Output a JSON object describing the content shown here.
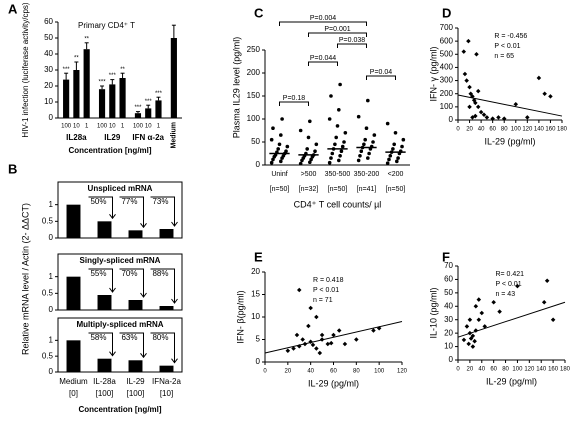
{
  "chart_data": [
    {
      "type": "bar",
      "panel": "A",
      "title": "Primary CD4⁺ T",
      "ylabel": "HIV-1 infection (luciferase activity/cps)",
      "xlabel": "Concentration [ng/ml]",
      "categories": [
        "100",
        "10",
        "1",
        "100",
        "10",
        "1",
        "100",
        "10",
        "1",
        "Medium"
      ],
      "group": [
        "IL28a",
        "IL28a",
        "IL28a",
        "IL29",
        "IL29",
        "IL29",
        "IFN α-2a",
        "IFN α-2a",
        "IFN α-2a",
        null
      ],
      "values": [
        24,
        30,
        43,
        18,
        21,
        25,
        3,
        6,
        11,
        50
      ],
      "errors": [
        4,
        5,
        4,
        2,
        3,
        3,
        1,
        2,
        2,
        8
      ],
      "significance": [
        "***",
        "**",
        "**",
        "***",
        "***",
        "**",
        "***",
        "***",
        "***",
        null
      ],
      "color": "#000000",
      "ylim": [
        0,
        60
      ],
      "yticks": [
        0,
        10,
        20,
        30,
        40,
        50,
        60
      ]
    },
    {
      "type": "bar-panels",
      "panel": "B",
      "ylabel": "Relative mRNA level / Actin (2- ΔΔCT)",
      "xlabel": "Concentration [ng/ml]",
      "categories": [
        "Medium",
        "IL-28a",
        "IL-29",
        "IFNa-2a"
      ],
      "doses": [
        "[0]",
        "[100]",
        "[100]",
        "[10]"
      ],
      "color": "#000000",
      "ylim": [
        0,
        1.2
      ],
      "yticks": [
        0,
        0.5,
        1
      ],
      "panels": [
        {
          "title": "Unspliced mRNA",
          "values": [
            1,
            0.5,
            0.23,
            0.27
          ],
          "reductions": [
            "50%",
            "77%",
            "73%"
          ]
        },
        {
          "title": "Singly-spliced mRNA",
          "values": [
            1,
            0.45,
            0.3,
            0.12
          ],
          "reductions": [
            "55%",
            "70%",
            "88%"
          ]
        },
        {
          "title": "Multiply-spliced mRNA",
          "values": [
            1,
            0.42,
            0.37,
            0.2
          ],
          "reductions": [
            "58%",
            "63%",
            "80%"
          ]
        }
      ]
    },
    {
      "type": "strip",
      "panel": "C",
      "ylabel": "Plasma IL29 level (pg/ml)",
      "xlabel": "CD4⁺ T cell counts/ µl",
      "categories": [
        "Uninf",
        ">500",
        "350-500",
        "350-200",
        "<200"
      ],
      "n_labels": [
        "[n=50]",
        "[n=32]",
        "[n=50]",
        "[n=41]",
        "[n=50]"
      ],
      "values": [
        [
          5,
          8,
          12,
          15,
          18,
          20,
          22,
          25,
          28,
          30,
          35,
          40,
          45,
          55,
          65,
          80,
          100
        ],
        [
          3,
          6,
          10,
          12,
          15,
          18,
          20,
          22,
          25,
          30,
          35,
          45,
          60,
          75,
          95
        ],
        [
          5,
          10,
          15,
          20,
          25,
          30,
          35,
          40,
          45,
          50,
          60,
          70,
          85,
          100,
          120,
          150,
          175
        ],
        [
          10,
          15,
          20,
          25,
          30,
          35,
          38,
          40,
          45,
          50,
          55,
          65,
          80,
          105,
          140
        ],
        [
          4,
          8,
          12,
          15,
          20,
          25,
          28,
          30,
          35,
          40,
          45,
          55,
          70,
          90
        ]
      ],
      "medians": [
        25,
        22,
        35,
        38,
        28
      ],
      "comparisons": [
        {
          "label": "P=0.004",
          "from": "Uninf",
          "to": "350-200"
        },
        {
          "label": "P=0.001",
          "from": ">500",
          "to": "350-200"
        },
        {
          "label": "P=0.038",
          "from": "350-500",
          "to": "350-200"
        },
        {
          "label": "P=0.044",
          "from": ">500",
          "to": "350-500"
        },
        {
          "label": "P=0.04",
          "from": "350-200",
          "to": "<200"
        },
        {
          "label": "P=0.18",
          "from": "Uninf",
          "to": ">500"
        }
      ],
      "color": "#000000",
      "ylim": [
        0,
        250
      ],
      "yticks": [
        0,
        50,
        100,
        150,
        200,
        250
      ]
    },
    {
      "type": "scatter",
      "panel": "D",
      "ylabel": "IFN- γ (pg/ml)",
      "xlabel": "IL-29 (pg/ml)",
      "stats": [
        "R = -0.456",
        "P < 0.01",
        "n = 65"
      ],
      "x": [
        10,
        15,
        18,
        20,
        22,
        25,
        28,
        30,
        32,
        35,
        20,
        40,
        45,
        50,
        60,
        70,
        80,
        25,
        30,
        100,
        120,
        140,
        150,
        160,
        12,
        35
      ],
      "y": [
        520,
        300,
        600,
        250,
        200,
        180,
        150,
        130,
        500,
        100,
        100,
        60,
        40,
        20,
        10,
        20,
        10,
        20,
        30,
        120,
        20,
        320,
        200,
        180,
        350,
        220
      ],
      "fit": {
        "x": [
          0,
          180
        ],
        "y": [
          190,
          30
        ]
      },
      "color": "#000000",
      "xlim": [
        0,
        180
      ],
      "xticks": [
        0,
        20,
        40,
        60,
        80,
        100,
        120,
        140,
        160,
        180
      ],
      "ylim": [
        0,
        700
      ],
      "yticks": [
        0,
        100,
        200,
        300,
        400,
        500,
        600,
        700
      ]
    },
    {
      "type": "scatter",
      "panel": "E",
      "ylabel": "IFN- β(pg/ml)",
      "xlabel": "IL-29 (pg/ml)",
      "stats": [
        "R = 0.418",
        "P < 0.01",
        "n = 71"
      ],
      "x": [
        30,
        40,
        45,
        100,
        95,
        60,
        50,
        35,
        30,
        25,
        40,
        55,
        70,
        80,
        20,
        45,
        50,
        38,
        65,
        28,
        33,
        42,
        58,
        48
      ],
      "y": [
        16,
        12,
        10,
        7.5,
        7,
        6,
        5,
        4,
        3.5,
        3,
        4.5,
        4,
        4,
        5,
        2.5,
        3,
        6,
        8,
        7,
        6,
        5,
        3.8,
        4.2,
        2
      ],
      "fit": {
        "x": [
          0,
          120
        ],
        "y": [
          2,
          9
        ]
      },
      "color": "#000000",
      "xlim": [
        0,
        120
      ],
      "xticks": [
        0,
        20,
        40,
        60,
        80,
        100,
        120
      ],
      "ylim": [
        0,
        20
      ],
      "yticks": [
        0,
        5,
        10,
        15,
        20
      ]
    },
    {
      "type": "scatter",
      "panel": "F",
      "ylabel": "IL-10 (pg/ml)",
      "xlabel": "IL-29 (pg/ml)",
      "stats": [
        "R= 0.421",
        "P < 0.01",
        "n = 43"
      ],
      "x": [
        20,
        15,
        25,
        30,
        35,
        40,
        20,
        30,
        60,
        100,
        145,
        150,
        160,
        10,
        25,
        45,
        35,
        70,
        18,
        22,
        28
      ],
      "y": [
        20,
        25,
        18,
        22,
        30,
        35,
        30,
        40,
        43,
        55,
        43,
        59,
        30,
        15,
        10,
        25,
        45,
        36,
        12,
        16,
        14
      ],
      "fit": {
        "x": [
          0,
          180
        ],
        "y": [
          17,
          43
        ]
      },
      "color": "#000000",
      "xlim": [
        0,
        180
      ],
      "xticks": [
        0,
        20,
        40,
        60,
        80,
        100,
        120,
        140,
        160,
        180
      ],
      "ylim": [
        0,
        70
      ],
      "yticks": [
        0,
        10,
        20,
        30,
        40,
        50,
        60,
        70
      ]
    }
  ]
}
